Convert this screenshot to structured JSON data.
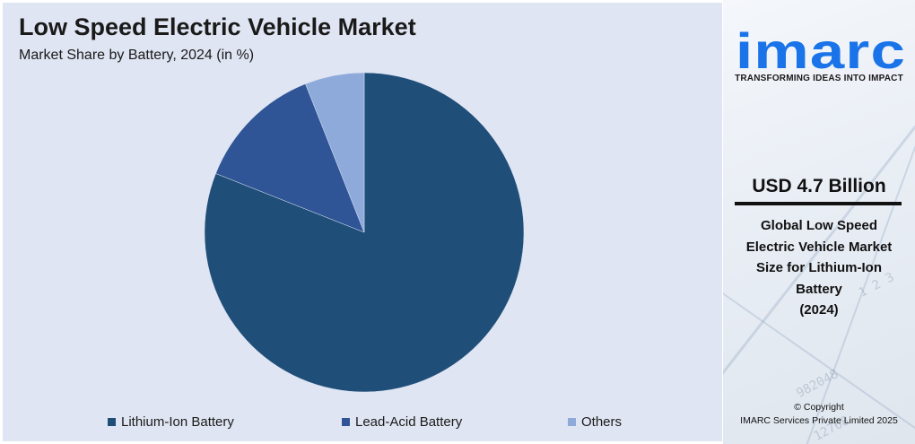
{
  "chart_data": {
    "type": "pie",
    "title": "Low Speed Electric Vehicle Market",
    "subtitle": "Market Share by Battery, 2024 (in %)",
    "categories": [
      "Lithium-Ion Battery",
      "Lead-Acid Battery",
      "Others"
    ],
    "values": [
      81,
      13,
      6
    ],
    "colors": [
      "#1f4e79",
      "#2f5597",
      "#8eaadb"
    ],
    "legend_position": "bottom"
  },
  "sidebar": {
    "logo_text": "imarc",
    "tagline": "TRANSFORMING IDEAS INTO IMPACT",
    "value": "USD 4.7 Billion",
    "description_lines": [
      "Global Low Speed",
      "Electric Vehicle Market",
      "Size for Lithium-Ion",
      "Battery",
      "(2024)"
    ],
    "copyright_line1": "© Copyright",
    "copyright_line2": "IMARC Services Private Limited 2025",
    "brand_color": "#1a73e8"
  }
}
